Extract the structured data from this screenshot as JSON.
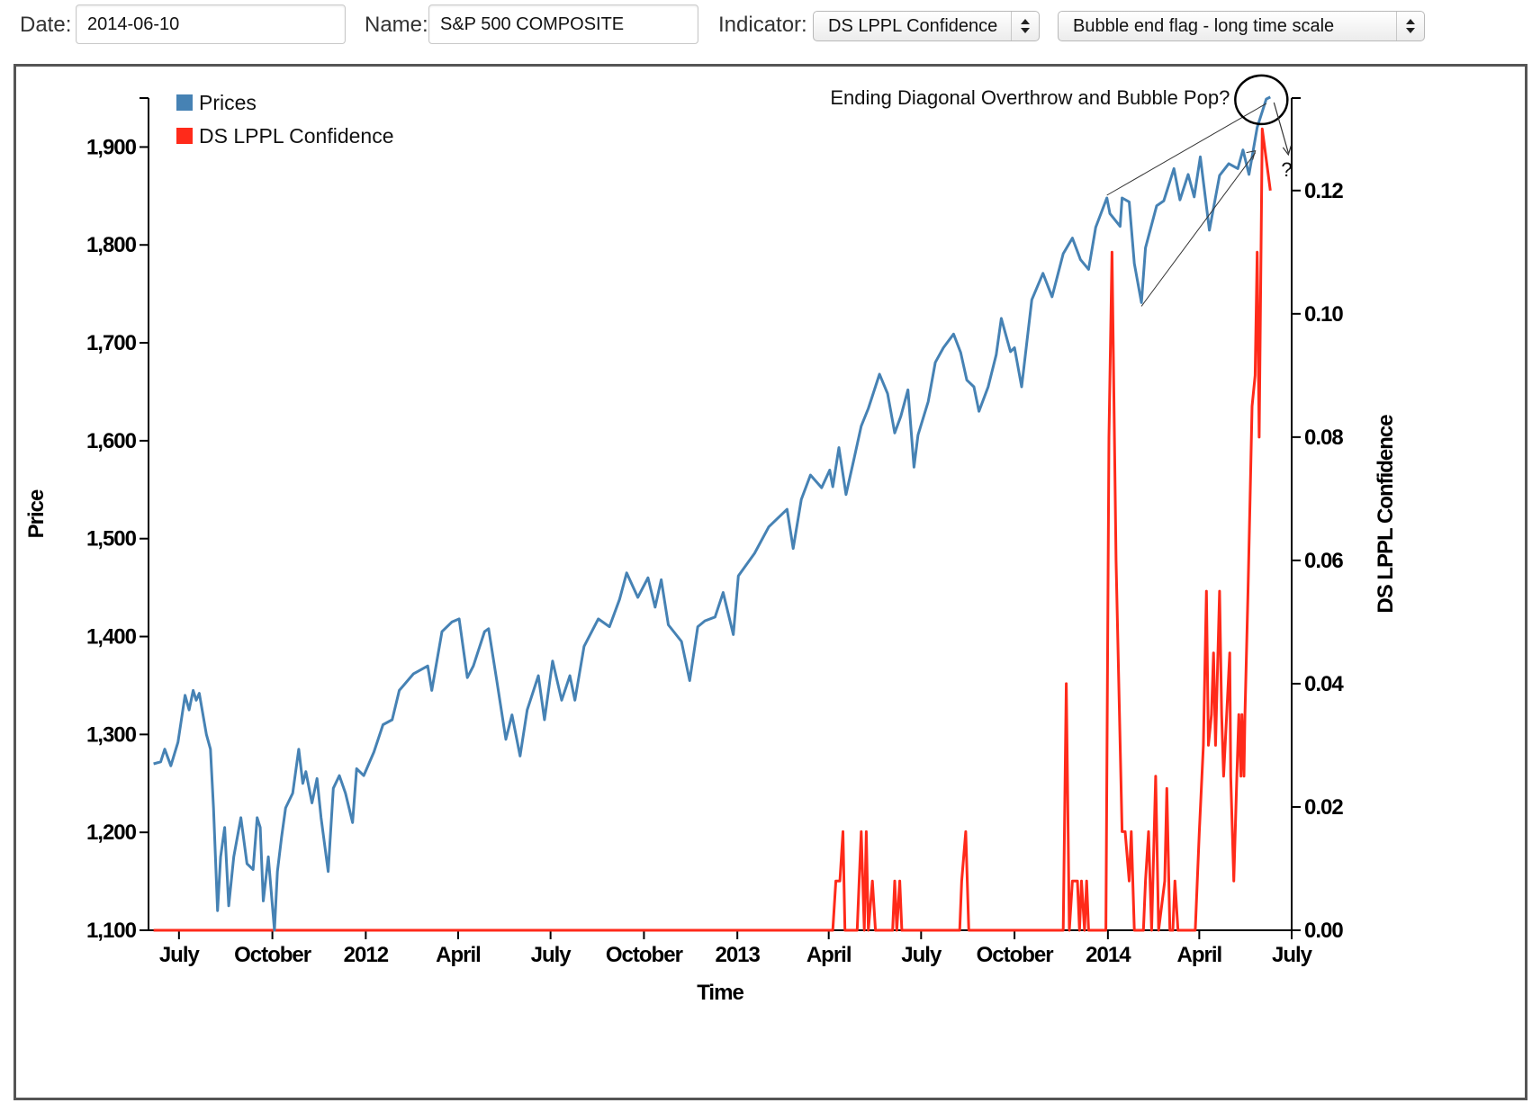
{
  "toolbar": {
    "date_label": "Date:",
    "date_value": "2014-06-10",
    "name_label": "Name:",
    "name_value": "S&P 500 COMPOSITE",
    "indicator_label": "Indicator:",
    "indicator_value": "DS LPPL Confidence",
    "flag_value": "Bubble end flag - long time scale"
  },
  "chart_data": {
    "type": "line",
    "xlabel": "Time",
    "ylabel": "Price",
    "y2label": "DS LPPL Confidence",
    "x_range": [
      "2011-06-01",
      "2014-07-01"
    ],
    "ylim": [
      1100,
      1950
    ],
    "y2lim": [
      0,
      0.135
    ],
    "y_ticks": [
      "1,100",
      "1,200",
      "1,300",
      "1,400",
      "1,500",
      "1,600",
      "1,700",
      "1,800",
      "1,900"
    ],
    "y2_ticks": [
      "0.00",
      "0.02",
      "0.04",
      "0.06",
      "0.08",
      "0.10",
      "0.12"
    ],
    "x_ticks": [
      {
        "date": "2011-07-01",
        "label": "July"
      },
      {
        "date": "2011-10-01",
        "label": "October"
      },
      {
        "date": "2012-01-01",
        "label": "2012"
      },
      {
        "date": "2012-04-01",
        "label": "April"
      },
      {
        "date": "2012-07-01",
        "label": "July"
      },
      {
        "date": "2012-10-01",
        "label": "October"
      },
      {
        "date": "2013-01-01",
        "label": "2013"
      },
      {
        "date": "2013-04-01",
        "label": "April"
      },
      {
        "date": "2013-07-01",
        "label": "July"
      },
      {
        "date": "2013-10-01",
        "label": "October"
      },
      {
        "date": "2014-01-01",
        "label": "2014"
      },
      {
        "date": "2014-04-01",
        "label": "April"
      },
      {
        "date": "2014-07-01",
        "label": "July"
      }
    ],
    "legend_position": "top-left",
    "series": [
      {
        "name": "Prices",
        "color": "#4682b4",
        "axis": "left",
        "points": [
          [
            "2011-06-06",
            1270
          ],
          [
            "2011-06-13",
            1272
          ],
          [
            "2011-06-17",
            1285
          ],
          [
            "2011-06-23",
            1268
          ],
          [
            "2011-06-30",
            1292
          ],
          [
            "2011-07-07",
            1340
          ],
          [
            "2011-07-11",
            1325
          ],
          [
            "2011-07-15",
            1345
          ],
          [
            "2011-07-18",
            1335
          ],
          [
            "2011-07-21",
            1342
          ],
          [
            "2011-07-25",
            1318
          ],
          [
            "2011-07-28",
            1300
          ],
          [
            "2011-08-01",
            1285
          ],
          [
            "2011-08-04",
            1225
          ],
          [
            "2011-08-08",
            1120
          ],
          [
            "2011-08-11",
            1175
          ],
          [
            "2011-08-15",
            1205
          ],
          [
            "2011-08-19",
            1125
          ],
          [
            "2011-08-24",
            1175
          ],
          [
            "2011-08-31",
            1215
          ],
          [
            "2011-09-06",
            1168
          ],
          [
            "2011-09-12",
            1162
          ],
          [
            "2011-09-16",
            1215
          ],
          [
            "2011-09-19",
            1205
          ],
          [
            "2011-09-22",
            1130
          ],
          [
            "2011-09-27",
            1175
          ],
          [
            "2011-10-03",
            1100
          ],
          [
            "2011-10-06",
            1160
          ],
          [
            "2011-10-10",
            1195
          ],
          [
            "2011-10-14",
            1225
          ],
          [
            "2011-10-21",
            1240
          ],
          [
            "2011-10-27",
            1285
          ],
          [
            "2011-10-31",
            1250
          ],
          [
            "2011-11-03",
            1262
          ],
          [
            "2011-11-09",
            1230
          ],
          [
            "2011-11-14",
            1255
          ],
          [
            "2011-11-18",
            1215
          ],
          [
            "2011-11-25",
            1160
          ],
          [
            "2011-11-30",
            1245
          ],
          [
            "2011-12-06",
            1258
          ],
          [
            "2011-12-12",
            1240
          ],
          [
            "2011-12-19",
            1210
          ],
          [
            "2011-12-23",
            1265
          ],
          [
            "2011-12-30",
            1258
          ],
          [
            "2012-01-09",
            1282
          ],
          [
            "2012-01-18",
            1310
          ],
          [
            "2012-01-27",
            1315
          ],
          [
            "2012-02-03",
            1345
          ],
          [
            "2012-02-17",
            1362
          ],
          [
            "2012-03-02",
            1370
          ],
          [
            "2012-03-06",
            1345
          ],
          [
            "2012-03-16",
            1405
          ],
          [
            "2012-03-26",
            1415
          ],
          [
            "2012-04-02",
            1418
          ],
          [
            "2012-04-10",
            1358
          ],
          [
            "2012-04-16",
            1370
          ],
          [
            "2012-04-27",
            1405
          ],
          [
            "2012-05-01",
            1408
          ],
          [
            "2012-05-09",
            1355
          ],
          [
            "2012-05-18",
            1295
          ],
          [
            "2012-05-24",
            1320
          ],
          [
            "2012-06-01",
            1278
          ],
          [
            "2012-06-08",
            1325
          ],
          [
            "2012-06-19",
            1360
          ],
          [
            "2012-06-25",
            1315
          ],
          [
            "2012-07-03",
            1375
          ],
          [
            "2012-07-12",
            1335
          ],
          [
            "2012-07-20",
            1360
          ],
          [
            "2012-07-25",
            1335
          ],
          [
            "2012-08-03",
            1390
          ],
          [
            "2012-08-17",
            1418
          ],
          [
            "2012-08-28",
            1410
          ],
          [
            "2012-09-07",
            1438
          ],
          [
            "2012-09-14",
            1465
          ],
          [
            "2012-09-25",
            1440
          ],
          [
            "2012-10-05",
            1460
          ],
          [
            "2012-10-12",
            1430
          ],
          [
            "2012-10-18",
            1458
          ],
          [
            "2012-10-25",
            1412
          ],
          [
            "2012-11-07",
            1395
          ],
          [
            "2012-11-15",
            1355
          ],
          [
            "2012-11-23",
            1410
          ],
          [
            "2012-11-30",
            1416
          ],
          [
            "2012-12-10",
            1420
          ],
          [
            "2012-12-18",
            1445
          ],
          [
            "2012-12-28",
            1402
          ],
          [
            "2013-01-02",
            1462
          ],
          [
            "2013-01-18",
            1485
          ],
          [
            "2013-02-01",
            1512
          ],
          [
            "2013-02-19",
            1530
          ],
          [
            "2013-02-25",
            1490
          ],
          [
            "2013-03-05",
            1540
          ],
          [
            "2013-03-14",
            1565
          ],
          [
            "2013-03-25",
            1552
          ],
          [
            "2013-04-02",
            1570
          ],
          [
            "2013-04-05",
            1553
          ],
          [
            "2013-04-11",
            1593
          ],
          [
            "2013-04-18",
            1545
          ],
          [
            "2013-04-26",
            1582
          ],
          [
            "2013-05-03",
            1615
          ],
          [
            "2013-05-10",
            1633
          ],
          [
            "2013-05-21",
            1668
          ],
          [
            "2013-05-29",
            1648
          ],
          [
            "2013-06-05",
            1608
          ],
          [
            "2013-06-11",
            1625
          ],
          [
            "2013-06-18",
            1652
          ],
          [
            "2013-06-24",
            1573
          ],
          [
            "2013-06-28",
            1606
          ],
          [
            "2013-07-08",
            1640
          ],
          [
            "2013-07-15",
            1680
          ],
          [
            "2013-07-23",
            1695
          ],
          [
            "2013-08-02",
            1709
          ],
          [
            "2013-08-09",
            1690
          ],
          [
            "2013-08-15",
            1662
          ],
          [
            "2013-08-22",
            1655
          ],
          [
            "2013-08-27",
            1630
          ],
          [
            "2013-09-05",
            1655
          ],
          [
            "2013-09-13",
            1688
          ],
          [
            "2013-09-18",
            1725
          ],
          [
            "2013-09-27",
            1691
          ],
          [
            "2013-10-01",
            1695
          ],
          [
            "2013-10-08",
            1655
          ],
          [
            "2013-10-18",
            1744
          ],
          [
            "2013-10-29",
            1771
          ],
          [
            "2013-11-07",
            1747
          ],
          [
            "2013-11-18",
            1791
          ],
          [
            "2013-11-27",
            1807
          ],
          [
            "2013-12-05",
            1785
          ],
          [
            "2013-12-13",
            1775
          ],
          [
            "2013-12-20",
            1818
          ],
          [
            "2013-12-31",
            1848
          ],
          [
            "2014-01-03",
            1832
          ],
          [
            "2014-01-13",
            1819
          ],
          [
            "2014-01-15",
            1848
          ],
          [
            "2014-01-22",
            1844
          ],
          [
            "2014-01-27",
            1781
          ],
          [
            "2014-02-03",
            1741
          ],
          [
            "2014-02-07",
            1797
          ],
          [
            "2014-02-18",
            1840
          ],
          [
            "2014-02-25",
            1845
          ],
          [
            "2014-03-07",
            1878
          ],
          [
            "2014-03-13",
            1846
          ],
          [
            "2014-03-21",
            1872
          ],
          [
            "2014-03-27",
            1849
          ],
          [
            "2014-04-02",
            1890
          ],
          [
            "2014-04-11",
            1815
          ],
          [
            "2014-04-21",
            1871
          ],
          [
            "2014-04-30",
            1883
          ],
          [
            "2014-05-09",
            1878
          ],
          [
            "2014-05-14",
            1897
          ],
          [
            "2014-05-20",
            1872
          ],
          [
            "2014-05-28",
            1920
          ],
          [
            "2014-06-06",
            1949
          ],
          [
            "2014-06-10",
            1951
          ]
        ]
      },
      {
        "name": "DS LPPL Confidence",
        "color": "#ff2a1a",
        "axis": "right",
        "points": [
          [
            "2011-06-06",
            0
          ],
          [
            "2013-04-05",
            0
          ],
          [
            "2013-04-08",
            0.008
          ],
          [
            "2013-04-12",
            0.008
          ],
          [
            "2013-04-15",
            0.016
          ],
          [
            "2013-04-17",
            0
          ],
          [
            "2013-04-29",
            0
          ],
          [
            "2013-05-01",
            0.008
          ],
          [
            "2013-05-03",
            0.016
          ],
          [
            "2013-05-06",
            0
          ],
          [
            "2013-05-08",
            0.016
          ],
          [
            "2013-05-10",
            0
          ],
          [
            "2013-05-14",
            0.008
          ],
          [
            "2013-05-17",
            0
          ],
          [
            "2013-06-03",
            0
          ],
          [
            "2013-06-05",
            0.008
          ],
          [
            "2013-06-07",
            0
          ],
          [
            "2013-06-10",
            0.008
          ],
          [
            "2013-06-12",
            0
          ],
          [
            "2013-08-08",
            0
          ],
          [
            "2013-08-10",
            0.008
          ],
          [
            "2013-08-14",
            0.016
          ],
          [
            "2013-08-17",
            0
          ],
          [
            "2013-11-18",
            0
          ],
          [
            "2013-11-21",
            0.04
          ],
          [
            "2013-11-24",
            0
          ],
          [
            "2013-11-27",
            0.008
          ],
          [
            "2013-12-02",
            0.008
          ],
          [
            "2013-12-04",
            0
          ],
          [
            "2013-12-06",
            0.008
          ],
          [
            "2013-12-09",
            0
          ],
          [
            "2013-12-11",
            0.008
          ],
          [
            "2013-12-13",
            0
          ],
          [
            "2013-12-30",
            0
          ],
          [
            "2014-01-02",
            0.08
          ],
          [
            "2014-01-05",
            0.11
          ],
          [
            "2014-01-09",
            0.06
          ],
          [
            "2014-01-15",
            0.016
          ],
          [
            "2014-01-18",
            0.016
          ],
          [
            "2014-01-22",
            0.008
          ],
          [
            "2014-01-24",
            0.016
          ],
          [
            "2014-01-27",
            0
          ],
          [
            "2014-02-05",
            0
          ],
          [
            "2014-02-07",
            0.008
          ],
          [
            "2014-02-10",
            0.016
          ],
          [
            "2014-02-13",
            0
          ],
          [
            "2014-02-17",
            0.025
          ],
          [
            "2014-02-20",
            0
          ],
          [
            "2014-02-26",
            0.008
          ],
          [
            "2014-02-28",
            0.023
          ],
          [
            "2014-03-03",
            0
          ],
          [
            "2014-03-06",
            0
          ],
          [
            "2014-03-08",
            0.008
          ],
          [
            "2014-03-11",
            0
          ],
          [
            "2014-03-28",
            0
          ],
          [
            "2014-04-01",
            0.016
          ],
          [
            "2014-04-05",
            0.03
          ],
          [
            "2014-04-08",
            0.055
          ],
          [
            "2014-04-10",
            0.03
          ],
          [
            "2014-04-13",
            0.035
          ],
          [
            "2014-04-15",
            0.045
          ],
          [
            "2014-04-17",
            0.03
          ],
          [
            "2014-04-21",
            0.055
          ],
          [
            "2014-04-23",
            0.035
          ],
          [
            "2014-04-25",
            0.025
          ],
          [
            "2014-04-28",
            0.035
          ],
          [
            "2014-05-01",
            0.045
          ],
          [
            "2014-05-02",
            0.025
          ],
          [
            "2014-05-05",
            0.008
          ],
          [
            "2014-05-08",
            0.025
          ],
          [
            "2014-05-10",
            0.035
          ],
          [
            "2014-05-12",
            0.025
          ],
          [
            "2014-05-13",
            0.035
          ],
          [
            "2014-05-15",
            0.025
          ],
          [
            "2014-05-16",
            0.035
          ],
          [
            "2014-05-19",
            0.055
          ],
          [
            "2014-05-21",
            0.07
          ],
          [
            "2014-05-23",
            0.085
          ],
          [
            "2014-05-26",
            0.09
          ],
          [
            "2014-05-28",
            0.11
          ],
          [
            "2014-05-30",
            0.08
          ],
          [
            "2014-06-02",
            0.13
          ],
          [
            "2014-06-10",
            0.12
          ]
        ]
      }
    ],
    "annotations": [
      {
        "text": "Ending Diagonal Overthrow and Bubble Pop?"
      },
      {
        "text": "?"
      }
    ]
  }
}
